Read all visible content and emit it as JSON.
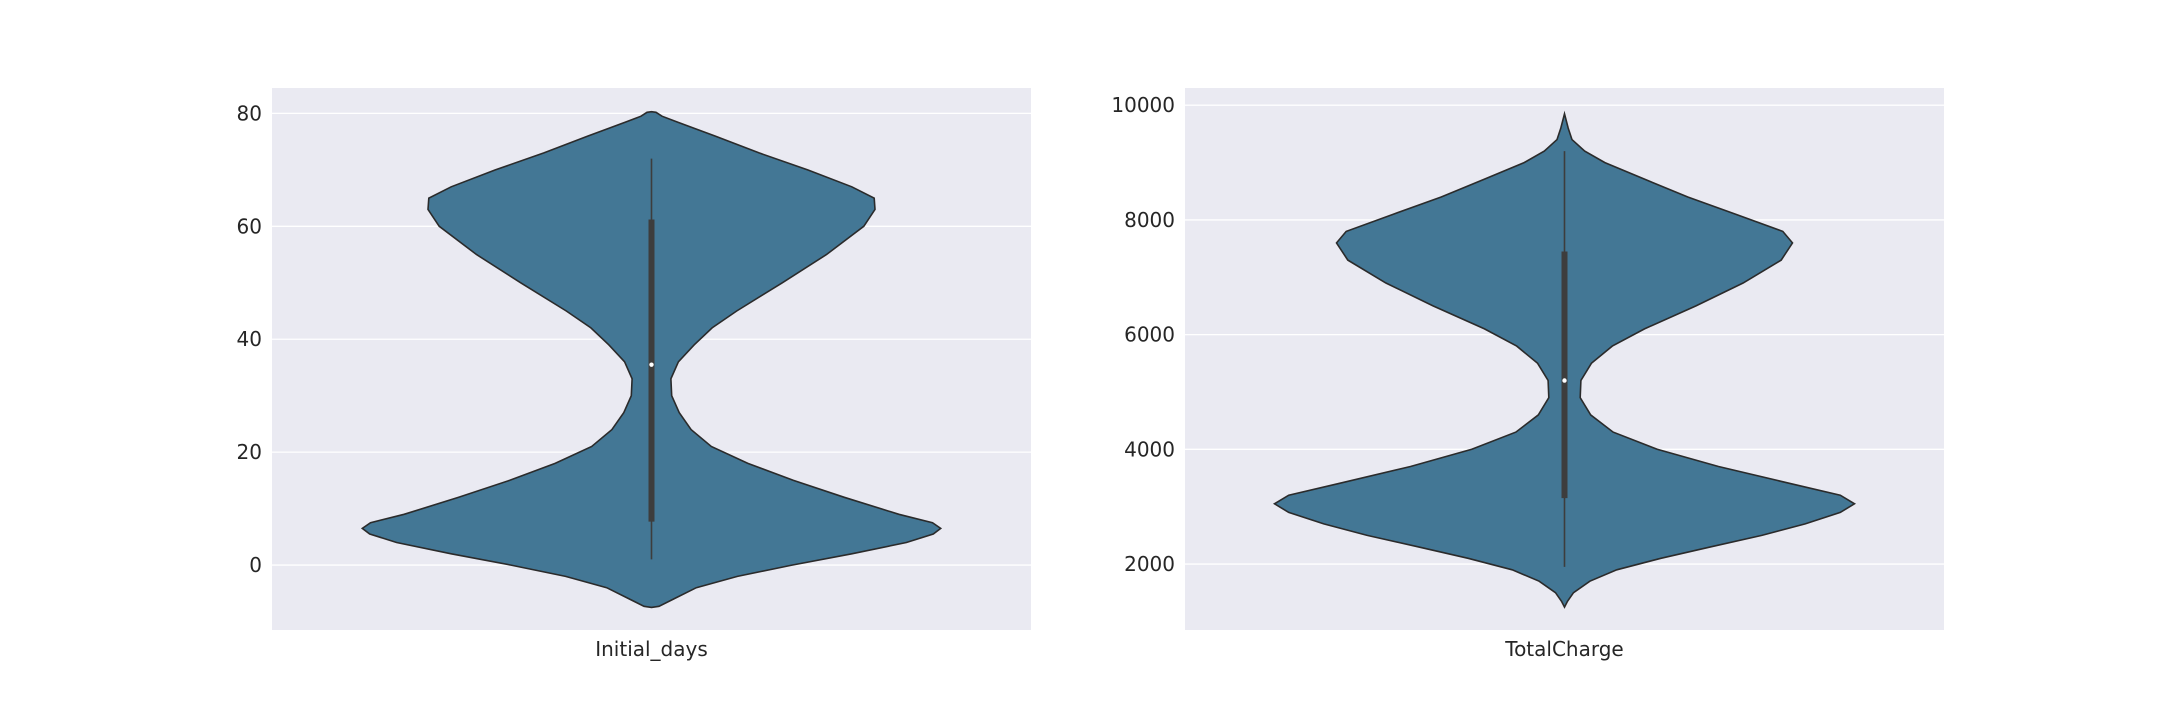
{
  "chart_data": [
    {
      "type": "violin",
      "category": "Initial_days",
      "ylim": [
        -11.5,
        84.5
      ],
      "yticks": [
        0,
        20,
        40,
        60,
        80
      ],
      "ytick_labels": [
        "0",
        "20",
        "40",
        "60",
        "80"
      ],
      "grid": true,
      "color": "#437795",
      "density_profile": [
        {
          "y": -7.5,
          "w": 0.0
        },
        {
          "y": -7.3,
          "w": 0.0257
        },
        {
          "y": -6.0,
          "w": 0.0773
        },
        {
          "y": -4.0,
          "w": 0.1546
        },
        {
          "y": -2.0,
          "w": 0.2963
        },
        {
          "y": 0.0,
          "w": 0.4845
        },
        {
          "y": 2.0,
          "w": 0.6907
        },
        {
          "y": 4.0,
          "w": 0.8788
        },
        {
          "y": 5.5,
          "w": 0.9716
        },
        {
          "y": 6.5,
          "w": 0.9974
        },
        {
          "y": 7.5,
          "w": 0.969
        },
        {
          "y": 9.0,
          "w": 0.8531
        },
        {
          "y": 12.0,
          "w": 0.6649
        },
        {
          "y": 15.0,
          "w": 0.4897
        },
        {
          "y": 18.0,
          "w": 0.3324
        },
        {
          "y": 21.0,
          "w": 0.2062
        },
        {
          "y": 24.0,
          "w": 0.1366
        },
        {
          "y": 27.0,
          "w": 0.0954
        },
        {
          "y": 30.0,
          "w": 0.0696
        },
        {
          "y": 33.0,
          "w": 0.067
        },
        {
          "y": 36.0,
          "w": 0.0928
        },
        {
          "y": 39.0,
          "w": 0.1469
        },
        {
          "y": 42.0,
          "w": 0.2088
        },
        {
          "y": 45.0,
          "w": 0.2938
        },
        {
          "y": 50.0,
          "w": 0.451
        },
        {
          "y": 55.0,
          "w": 0.603
        },
        {
          "y": 60.0,
          "w": 0.732
        },
        {
          "y": 63.0,
          "w": 0.7706
        },
        {
          "y": 65.0,
          "w": 0.768
        },
        {
          "y": 67.0,
          "w": 0.6907
        },
        {
          "y": 70.0,
          "w": 0.5387
        },
        {
          "y": 73.0,
          "w": 0.3711
        },
        {
          "y": 76.0,
          "w": 0.2191
        },
        {
          "y": 78.5,
          "w": 0.0876
        },
        {
          "y": 79.5,
          "w": 0.0361
        },
        {
          "y": 80.2,
          "w": 0.0155
        },
        {
          "y": 80.3,
          "w": 0.0
        }
      ],
      "box": {
        "whisker_low": 1,
        "q1": 7.7,
        "median": 35.5,
        "q3": 61.2,
        "whisker_high": 72
      }
    },
    {
      "type": "violin",
      "category": "TotalCharge",
      "ylim": [
        850,
        10300
      ],
      "yticks": [
        2000,
        4000,
        6000,
        8000,
        10000
      ],
      "ytick_labels": [
        "2000",
        "4000",
        "6000",
        "8000",
        "10000"
      ],
      "grid": true,
      "color": "#437795",
      "density_profile": [
        {
          "y": 1250,
          "w": 0.0
        },
        {
          "y": 1350,
          "w": 0.0103
        },
        {
          "y": 1500,
          "w": 0.0309
        },
        {
          "y": 1700,
          "w": 0.0876
        },
        {
          "y": 1900,
          "w": 0.1804
        },
        {
          "y": 2100,
          "w": 0.3325
        },
        {
          "y": 2300,
          "w": 0.5052
        },
        {
          "y": 2500,
          "w": 0.6804
        },
        {
          "y": 2700,
          "w": 0.8299
        },
        {
          "y": 2900,
          "w": 0.951
        },
        {
          "y": 3050,
          "w": 1.0
        },
        {
          "y": 3200,
          "w": 0.951
        },
        {
          "y": 3400,
          "w": 0.7809
        },
        {
          "y": 3700,
          "w": 0.5309
        },
        {
          "y": 4000,
          "w": 0.3196
        },
        {
          "y": 4300,
          "w": 0.1675
        },
        {
          "y": 4600,
          "w": 0.0902
        },
        {
          "y": 4900,
          "w": 0.0541
        },
        {
          "y": 5200,
          "w": 0.0567
        },
        {
          "y": 5500,
          "w": 0.0928
        },
        {
          "y": 5800,
          "w": 0.1649
        },
        {
          "y": 6100,
          "w": 0.2758
        },
        {
          "y": 6500,
          "w": 0.4536
        },
        {
          "y": 6900,
          "w": 0.616
        },
        {
          "y": 7300,
          "w": 0.7474
        },
        {
          "y": 7600,
          "w": 0.7861
        },
        {
          "y": 7800,
          "w": 0.7526
        },
        {
          "y": 8100,
          "w": 0.5902
        },
        {
          "y": 8400,
          "w": 0.4253
        },
        {
          "y": 8700,
          "w": 0.2809
        },
        {
          "y": 9000,
          "w": 0.1392
        },
        {
          "y": 9200,
          "w": 0.0696
        },
        {
          "y": 9400,
          "w": 0.0258
        },
        {
          "y": 9600,
          "w": 0.0129
        },
        {
          "y": 9850,
          "w": 0.0
        }
      ],
      "box": {
        "whisker_low": 1950,
        "q1": 3150,
        "median": 5200,
        "q3": 7450,
        "whisker_high": 9200
      }
    }
  ]
}
